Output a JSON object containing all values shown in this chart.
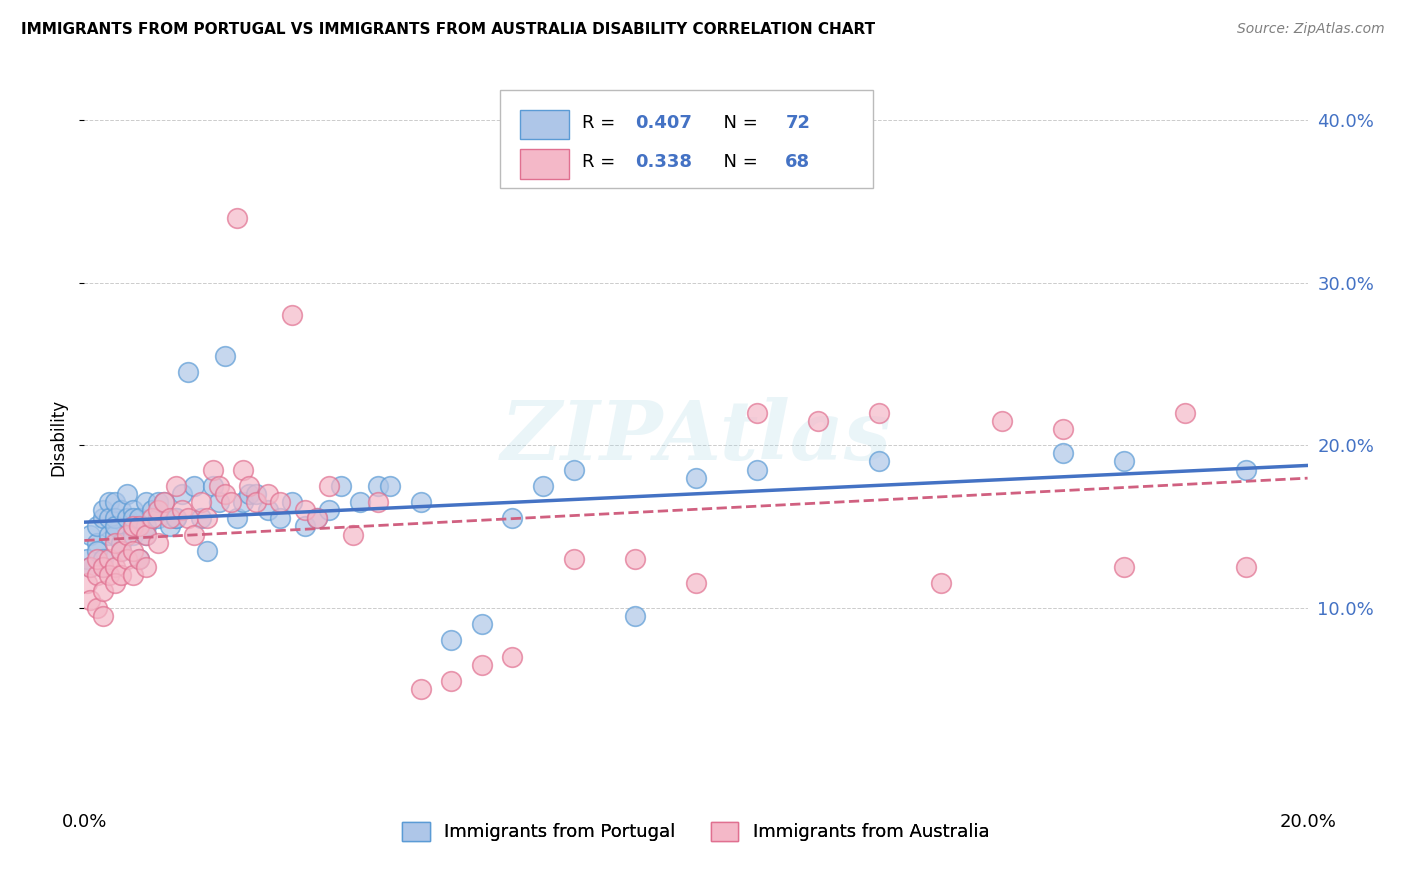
{
  "title": "IMMIGRANTS FROM PORTUGAL VS IMMIGRANTS FROM AUSTRALIA DISABILITY CORRELATION CHART",
  "source": "Source: ZipAtlas.com",
  "ylabel": "Disability",
  "xlim": [
    0.0,
    0.2
  ],
  "ylim": [
    -0.02,
    0.43
  ],
  "yticks": [
    0.1,
    0.2,
    0.3,
    0.4
  ],
  "ytick_labels": [
    "10.0%",
    "20.0%",
    "30.0%",
    "40.0%"
  ],
  "xticks": [
    0.0,
    0.05,
    0.1,
    0.15,
    0.2
  ],
  "color_blue": "#aec6e8",
  "color_pink": "#f4b8c8",
  "edge_blue": "#5b9bd5",
  "edge_pink": "#e07090",
  "line_blue": "#4472c4",
  "line_pink": "#d06080",
  "legend_color": "#4472c4",
  "watermark": "ZIPAtlas",
  "portugal_x": [
    0.0005,
    0.001,
    0.001,
    0.002,
    0.002,
    0.002,
    0.003,
    0.003,
    0.003,
    0.003,
    0.004,
    0.004,
    0.004,
    0.005,
    0.005,
    0.005,
    0.005,
    0.006,
    0.006,
    0.006,
    0.007,
    0.007,
    0.008,
    0.008,
    0.008,
    0.009,
    0.009,
    0.01,
    0.01,
    0.01,
    0.011,
    0.012,
    0.012,
    0.013,
    0.014,
    0.015,
    0.015,
    0.016,
    0.017,
    0.018,
    0.019,
    0.02,
    0.021,
    0.022,
    0.023,
    0.025,
    0.026,
    0.027,
    0.028,
    0.03,
    0.032,
    0.034,
    0.036,
    0.038,
    0.04,
    0.042,
    0.045,
    0.048,
    0.05,
    0.055,
    0.06,
    0.065,
    0.07,
    0.075,
    0.08,
    0.09,
    0.1,
    0.11,
    0.13,
    0.16,
    0.17,
    0.19
  ],
  "portugal_y": [
    0.13,
    0.145,
    0.125,
    0.14,
    0.135,
    0.15,
    0.155,
    0.13,
    0.125,
    0.16,
    0.145,
    0.165,
    0.155,
    0.145,
    0.165,
    0.155,
    0.15,
    0.16,
    0.14,
    0.135,
    0.155,
    0.17,
    0.145,
    0.16,
    0.155,
    0.155,
    0.13,
    0.15,
    0.165,
    0.145,
    0.16,
    0.155,
    0.165,
    0.165,
    0.15,
    0.155,
    0.155,
    0.17,
    0.245,
    0.175,
    0.155,
    0.135,
    0.175,
    0.165,
    0.255,
    0.155,
    0.165,
    0.17,
    0.17,
    0.16,
    0.155,
    0.165,
    0.15,
    0.155,
    0.16,
    0.175,
    0.165,
    0.175,
    0.175,
    0.165,
    0.08,
    0.09,
    0.155,
    0.175,
    0.185,
    0.095,
    0.18,
    0.185,
    0.19,
    0.195,
    0.19,
    0.185
  ],
  "australia_x": [
    0.0005,
    0.001,
    0.001,
    0.002,
    0.002,
    0.002,
    0.003,
    0.003,
    0.003,
    0.004,
    0.004,
    0.005,
    0.005,
    0.005,
    0.006,
    0.006,
    0.007,
    0.007,
    0.008,
    0.008,
    0.008,
    0.009,
    0.009,
    0.01,
    0.01,
    0.011,
    0.012,
    0.012,
    0.013,
    0.014,
    0.015,
    0.016,
    0.017,
    0.018,
    0.019,
    0.02,
    0.021,
    0.022,
    0.023,
    0.024,
    0.025,
    0.026,
    0.027,
    0.028,
    0.03,
    0.032,
    0.034,
    0.036,
    0.038,
    0.04,
    0.044,
    0.048,
    0.055,
    0.06,
    0.065,
    0.07,
    0.08,
    0.09,
    0.1,
    0.11,
    0.12,
    0.13,
    0.14,
    0.15,
    0.16,
    0.17,
    0.18,
    0.19
  ],
  "australia_y": [
    0.115,
    0.125,
    0.105,
    0.12,
    0.1,
    0.13,
    0.125,
    0.11,
    0.095,
    0.13,
    0.12,
    0.14,
    0.125,
    0.115,
    0.135,
    0.12,
    0.145,
    0.13,
    0.15,
    0.135,
    0.12,
    0.15,
    0.13,
    0.145,
    0.125,
    0.155,
    0.16,
    0.14,
    0.165,
    0.155,
    0.175,
    0.16,
    0.155,
    0.145,
    0.165,
    0.155,
    0.185,
    0.175,
    0.17,
    0.165,
    0.34,
    0.185,
    0.175,
    0.165,
    0.17,
    0.165,
    0.28,
    0.16,
    0.155,
    0.175,
    0.145,
    0.165,
    0.05,
    0.055,
    0.065,
    0.07,
    0.13,
    0.13,
    0.115,
    0.22,
    0.215,
    0.22,
    0.115,
    0.215,
    0.21,
    0.125,
    0.22,
    0.125
  ]
}
